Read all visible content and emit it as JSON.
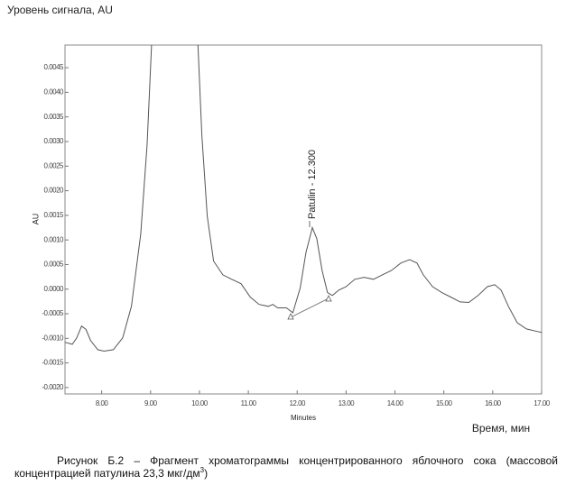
{
  "chart_data": {
    "type": "line",
    "y_title": "Уровень сигнала, AU",
    "x_title": "Время, мин",
    "y_axis_label": "AU",
    "x_axis_label": "Minutes",
    "annotation": "Patulin - 12.300",
    "caption_main": "Рисунок Б.2 – Фрагмент хроматограммы концентрированного яблочного сока (массовой концентрацией патулина 23,3 мкг/дм",
    "caption_sup": "3",
    "caption_end": ")",
    "xlim": [
      7.25,
      17.0
    ],
    "ylim": [
      -0.00213,
      0.00496
    ],
    "xticks": [
      {
        "value": 8,
        "label": "8.00"
      },
      {
        "value": 9,
        "label": "9.00"
      },
      {
        "value": 10,
        "label": "10.00"
      },
      {
        "value": 11,
        "label": "11.00"
      },
      {
        "value": 12,
        "label": "12.00"
      },
      {
        "value": 13,
        "label": "13.00"
      },
      {
        "value": 14,
        "label": "14.00"
      },
      {
        "value": 15,
        "label": "15.00"
      },
      {
        "value": 16,
        "label": "16.00"
      },
      {
        "value": 17,
        "label": "17.00"
      }
    ],
    "yticks": [
      0.0045,
      {
        "value": 0.004,
        "label": "0.0040"
      },
      0.0035,
      {
        "value": 0.003,
        "label": "0.0030"
      },
      0.0025,
      {
        "value": 0.002,
        "label": "0.0020"
      },
      0.0015,
      {
        "value": 0.001,
        "label": "0.0010"
      },
      0.0005,
      {
        "value": 0,
        "label": "0.0000"
      },
      -0.0005,
      {
        "value": -0.001,
        "label": "-0.0010"
      },
      -0.0015,
      {
        "value": -0.002,
        "label": "-0.0020"
      }
    ],
    "color": "#555555",
    "x": [
      7.25,
      7.4,
      7.49,
      7.59,
      7.68,
      7.77,
      7.92,
      8.05,
      8.24,
      8.43,
      8.61,
      8.8,
      8.93,
      9.02,
      9.5,
      9.97,
      10.05,
      10.16,
      10.29,
      10.48,
      10.66,
      10.85,
      11.04,
      11.22,
      11.41,
      11.5,
      11.6,
      11.78,
      11.91,
      12.06,
      12.18,
      12.31,
      12.4,
      12.51,
      12.62,
      12.72,
      12.85,
      13.0,
      13.18,
      13.37,
      13.56,
      13.74,
      13.93,
      14.12,
      14.3,
      14.45,
      14.58,
      14.77,
      14.96,
      15.14,
      15.33,
      15.51,
      15.7,
      15.89,
      16.04,
      16.17,
      16.32,
      16.5,
      16.69,
      16.91,
      17.0
    ],
    "values": [
      -0.00108,
      -0.00112,
      -0.00099,
      -0.00075,
      -0.00082,
      -0.00104,
      -0.00123,
      -0.00126,
      -0.00123,
      -0.00099,
      -0.00035,
      0.00112,
      0.00295,
      0.00496,
      null,
      0.00496,
      0.00313,
      0.00148,
      0.00057,
      0.00029,
      0.0002,
      0.00011,
      -0.00016,
      -0.00031,
      -0.00035,
      -0.00031,
      -0.00038,
      -0.00038,
      -0.00048,
      2e-05,
      0.00075,
      0.00125,
      0.00103,
      0.00038,
      -7e-05,
      -0.00013,
      -2e-05,
      5e-05,
      0.0002,
      0.00024,
      0.0002,
      0.00029,
      0.00038,
      0.00053,
      0.0006,
      0.00053,
      0.00029,
      5e-05,
      -7e-05,
      -0.00016,
      -0.00026,
      -0.00027,
      -0.00013,
      5e-05,
      9e-05,
      -2e-05,
      -0.00035,
      -0.00068,
      -0.00081,
      -0.00086,
      -0.00088
    ]
  }
}
